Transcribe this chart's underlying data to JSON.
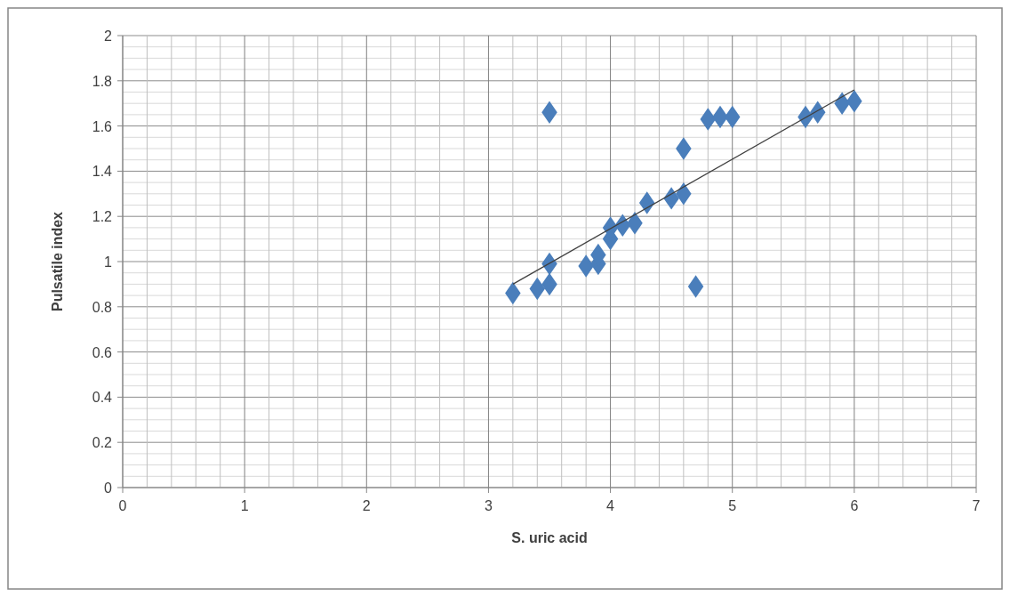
{
  "chart_data": {
    "type": "scatter",
    "xlabel": "S. uric acid",
    "ylabel": "Pulsatile index",
    "xlim": [
      0,
      7
    ],
    "ylim": [
      0,
      2
    ],
    "grid": true,
    "marker": "diamond",
    "xticks": [
      0,
      {
        "value": 0.2,
        "label": null
      },
      {
        "value": 0.4,
        "label": null
      },
      {
        "value": 0.6,
        "label": null
      },
      {
        "value": 0.8,
        "label": null
      },
      1,
      {
        "value": 1.2,
        "label": null
      },
      {
        "value": 1.4,
        "label": null
      },
      {
        "value": 1.6,
        "label": null
      },
      {
        "value": 1.8,
        "label": null
      },
      2,
      {
        "value": 2.2,
        "label": null
      },
      {
        "value": 2.4,
        "label": null
      },
      {
        "value": 2.6,
        "label": null
      },
      {
        "value": 2.8,
        "label": null
      },
      3,
      {
        "value": 3.2,
        "label": null
      },
      {
        "value": 3.4,
        "label": null
      },
      {
        "value": 3.6,
        "label": null
      },
      {
        "value": 3.8,
        "label": null
      },
      4,
      {
        "value": 4.2,
        "label": null
      },
      {
        "value": 4.4,
        "label": null
      },
      {
        "value": 4.6,
        "label": null
      },
      {
        "value": 4.8,
        "label": null
      },
      5,
      {
        "value": 5.2,
        "label": null
      },
      {
        "value": 5.4,
        "label": null
      },
      {
        "value": 5.6,
        "label": null
      },
      {
        "value": 5.8,
        "label": null
      },
      6,
      {
        "value": 6.2,
        "label": null
      },
      {
        "value": 6.4,
        "label": null
      },
      {
        "value": 6.6,
        "label": null
      },
      {
        "value": 6.8,
        "label": null
      },
      7
    ],
    "yticks": [
      0,
      {
        "value": 0.05,
        "label": null
      },
      {
        "value": 0.1,
        "label": null
      },
      {
        "value": 0.15,
        "label": null
      },
      0.2,
      {
        "value": 0.25,
        "label": null
      },
      {
        "value": 0.3,
        "label": null
      },
      {
        "value": 0.35,
        "label": null
      },
      0.4,
      {
        "value": 0.45,
        "label": null
      },
      {
        "value": 0.5,
        "label": null
      },
      {
        "value": 0.55,
        "label": null
      },
      0.6,
      {
        "value": 0.65,
        "label": null
      },
      {
        "value": 0.7,
        "label": null
      },
      {
        "value": 0.75,
        "label": null
      },
      0.8,
      {
        "value": 0.85,
        "label": null
      },
      {
        "value": 0.9,
        "label": null
      },
      {
        "value": 0.95,
        "label": null
      },
      1,
      {
        "value": 1.05,
        "label": null
      },
      {
        "value": 1.1,
        "label": null
      },
      {
        "value": 1.15,
        "label": null
      },
      1.2,
      {
        "value": 1.25,
        "label": null
      },
      {
        "value": 1.3,
        "label": null
      },
      {
        "value": 1.35,
        "label": null
      },
      1.4,
      {
        "value": 1.45,
        "label": null
      },
      {
        "value": 1.5,
        "label": null
      },
      {
        "value": 1.55,
        "label": null
      },
      1.6,
      {
        "value": 1.65,
        "label": null
      },
      {
        "value": 1.7,
        "label": null
      },
      {
        "value": 1.75,
        "label": null
      },
      1.8,
      {
        "value": 1.85,
        "label": null
      },
      {
        "value": 1.9,
        "label": null
      },
      {
        "value": 1.95,
        "label": null
      },
      2
    ],
    "series": [
      {
        "color": "#4a7ebb",
        "x": [
          3.2,
          3.4,
          3.5,
          3.5,
          3.5,
          3.8,
          3.9,
          3.9,
          4.0,
          4.0,
          4.1,
          4.2,
          4.3,
          4.5,
          4.6,
          4.6,
          4.7,
          4.8,
          4.9,
          5.0,
          5.6,
          5.7,
          5.9,
          6.0
        ],
        "values": [
          0.86,
          0.88,
          0.9,
          0.99,
          1.66,
          0.98,
          0.99,
          1.03,
          1.1,
          1.15,
          1.16,
          1.17,
          1.26,
          1.28,
          1.3,
          1.5,
          0.89,
          1.63,
          1.64,
          1.64,
          1.64,
          1.66,
          1.7,
          1.71
        ]
      },
      {
        "type": "line",
        "color": "#404040",
        "marker": "none",
        "x": [
          3.2,
          6.0
        ],
        "values": [
          0.9,
          1.76
        ]
      }
    ]
  }
}
